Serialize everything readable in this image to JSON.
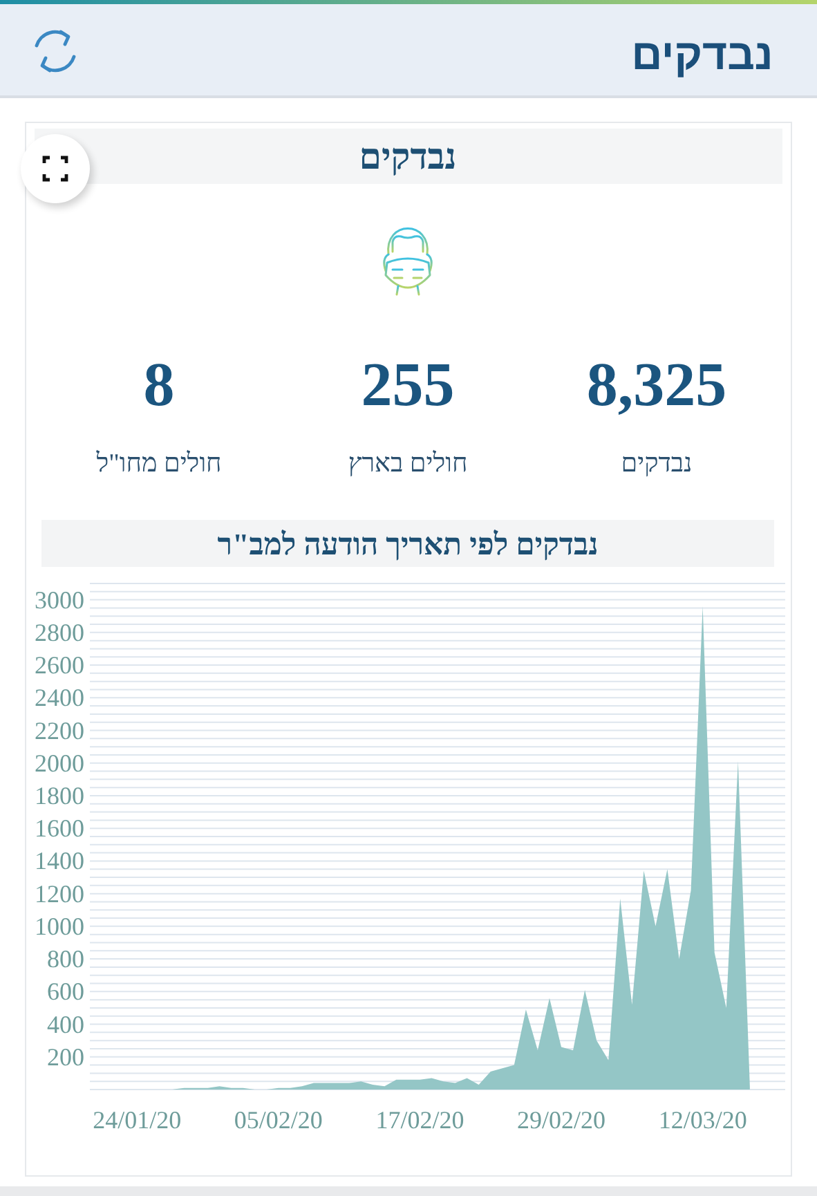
{
  "chart_data": [
    {
      "type": "other",
      "title": "נבדקים",
      "subtitle": "נבדקים",
      "annotations": [
        "8,325",
        "נבדקים",
        "255",
        "חולים בארץ",
        "8",
        "חולים מחו\"ל"
      ]
    },
    {
      "type": "area",
      "title": "נבדקים לפי תאריך הודעה למב\"ר",
      "color": "#94c6c6",
      "x": [
        "2020-01-27",
        "2020-01-28",
        "2020-01-29",
        "2020-01-30",
        "2020-01-31",
        "2020-02-01",
        "2020-02-02",
        "2020-02-03",
        "2020-02-04",
        "2020-02-05",
        "2020-02-06",
        "2020-02-07",
        "2020-02-08",
        "2020-02-09",
        "2020-02-10",
        "2020-02-11",
        "2020-02-12",
        "2020-02-13",
        "2020-02-14",
        "2020-02-15",
        "2020-02-16",
        "2020-02-17",
        "2020-02-18",
        "2020-02-19",
        "2020-02-20",
        "2020-02-21",
        "2020-02-22",
        "2020-02-23",
        "2020-02-24",
        "2020-02-25",
        "2020-02-26",
        "2020-02-27",
        "2020-02-28",
        "2020-02-29",
        "2020-03-01",
        "2020-03-02",
        "2020-03-03",
        "2020-03-04",
        "2020-03-05",
        "2020-03-06",
        "2020-03-07",
        "2020-03-08",
        "2020-03-09",
        "2020-03-10",
        "2020-03-11",
        "2020-03-12",
        "2020-03-13",
        "2020-03-14",
        "2020-03-15",
        "2020-03-16"
      ],
      "values": [
        0,
        10,
        10,
        10,
        20,
        10,
        10,
        0,
        0,
        10,
        10,
        20,
        40,
        40,
        40,
        40,
        50,
        30,
        20,
        60,
        60,
        60,
        70,
        50,
        40,
        70,
        30,
        110,
        130,
        150,
        490,
        240,
        560,
        260,
        240,
        610,
        300,
        180,
        1170,
        520,
        1340,
        1000,
        1350,
        800,
        1220,
        2960,
        840,
        500,
        2010,
        20
      ],
      "xlim": [
        "2020-01-20",
        "2020-03-19"
      ],
      "xticks": [
        {
          "value": "2020-01-24",
          "label": "24/01/20"
        },
        {
          "value": "2020-02-05",
          "label": "05/02/20"
        },
        {
          "value": "2020-02-17",
          "label": "17/02/20"
        },
        {
          "value": "2020-02-29",
          "label": "29/02/20"
        },
        {
          "value": "2020-03-12",
          "label": "12/03/20"
        }
      ],
      "ylim": [
        0,
        3100
      ],
      "yticks": [
        {
          "value": 0,
          "label": null
        },
        {
          "value": 50,
          "label": null
        },
        {
          "value": 100,
          "label": null
        },
        {
          "value": 150,
          "label": null
        },
        200,
        {
          "value": 250,
          "label": null
        },
        {
          "value": 300,
          "label": null
        },
        {
          "value": 350,
          "label": null
        },
        400,
        {
          "value": 450,
          "label": null
        },
        {
          "value": 500,
          "label": null
        },
        {
          "value": 550,
          "label": null
        },
        600,
        {
          "value": 650,
          "label": null
        },
        {
          "value": 700,
          "label": null
        },
        {
          "value": 750,
          "label": null
        },
        800,
        {
          "value": 850,
          "label": null
        },
        {
          "value": 900,
          "label": null
        },
        {
          "value": 950,
          "label": null
        },
        1000,
        {
          "value": 1050,
          "label": null
        },
        {
          "value": 1100,
          "label": null
        },
        {
          "value": 1150,
          "label": null
        },
        1200,
        {
          "value": 1250,
          "label": null
        },
        {
          "value": 1300,
          "label": null
        },
        {
          "value": 1350,
          "label": null
        },
        1400,
        {
          "value": 1450,
          "label": null
        },
        {
          "value": 1500,
          "label": null
        },
        {
          "value": 1550,
          "label": null
        },
        1600,
        {
          "value": 1650,
          "label": null
        },
        {
          "value": 1700,
          "label": null
        },
        {
          "value": 1750,
          "label": null
        },
        1800,
        {
          "value": 1850,
          "label": null
        },
        {
          "value": 1900,
          "label": null
        },
        {
          "value": 1950,
          "label": null
        },
        2000,
        {
          "value": 2050,
          "label": null
        },
        {
          "value": 2100,
          "label": null
        },
        {
          "value": 2150,
          "label": null
        },
        2200,
        {
          "value": 2250,
          "label": null
        },
        {
          "value": 2300,
          "label": null
        },
        {
          "value": 2350,
          "label": null
        },
        2400,
        {
          "value": 2450,
          "label": null
        },
        {
          "value": 2500,
          "label": null
        },
        {
          "value": 2550,
          "label": null
        },
        2600,
        {
          "value": 2650,
          "label": null
        },
        {
          "value": 2700,
          "label": null
        },
        {
          "value": 2750,
          "label": null
        },
        2800,
        {
          "value": 2850,
          "label": null
        },
        {
          "value": 2900,
          "label": null
        },
        {
          "value": 2950,
          "label": null
        },
        3000,
        {
          "value": 3050,
          "label": null
        },
        {
          "value": 3100,
          "label": null
        }
      ],
      "grid": "y"
    }
  ]
}
